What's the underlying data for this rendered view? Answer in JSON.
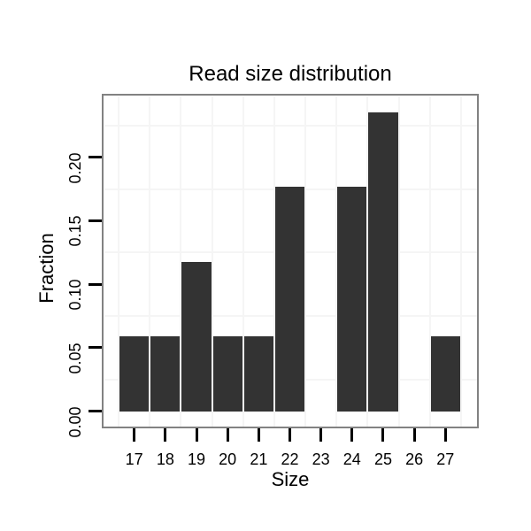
{
  "chart_data": {
    "type": "bar",
    "title": "Read size distribution",
    "xlabel": "Size",
    "ylabel": "Fraction",
    "categories": [
      "17",
      "18",
      "19",
      "20",
      "21",
      "22",
      "23",
      "24",
      "25",
      "26",
      "27"
    ],
    "values": [
      0.0588,
      0.0588,
      0.1176,
      0.0588,
      0.0588,
      0.1765,
      0,
      0.1765,
      0.2353,
      0,
      0.0588
    ],
    "yticks": [
      {
        "label": "0.00",
        "value": 0.0
      },
      {
        "label": "0.05",
        "value": 0.05
      },
      {
        "label": "0.10",
        "value": 0.1
      },
      {
        "label": "0.15",
        "value": 0.15
      },
      {
        "label": "0.20",
        "value": 0.2
      }
    ],
    "minor_grid_y_values": [
      0.025,
      0.075,
      0.125,
      0.175,
      0.225
    ],
    "ylim": [
      0,
      0.247
    ],
    "grid": "minor-only",
    "legend": "none",
    "colors": {
      "bar": "#333333",
      "gridline": "#f5f5f5",
      "panel_border": "#828282",
      "tick": "#000000",
      "text": "#000000",
      "background": "#ffffff"
    }
  }
}
